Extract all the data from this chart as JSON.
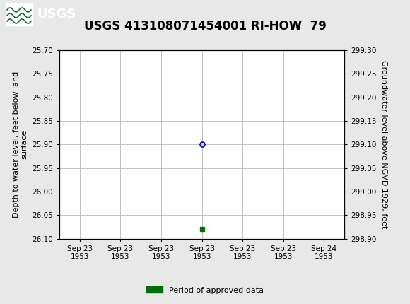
{
  "title": "USGS 413108071454001 RI-HOW  79",
  "ylabel_left": "Depth to water level, feet below land\nsurface",
  "ylabel_right": "Groundwater level above NGVD 1929, feet",
  "ylim_left_top": 25.7,
  "ylim_left_bottom": 26.1,
  "ylim_right_top": 299.3,
  "ylim_right_bottom": 298.9,
  "yticks_left": [
    25.7,
    25.75,
    25.8,
    25.85,
    25.9,
    25.95,
    26.0,
    26.05,
    26.1
  ],
  "ytick_labels_left": [
    "25.70",
    "25.75",
    "25.80",
    "25.85",
    "25.90",
    "25.95",
    "26.00",
    "26.05",
    "26.10"
  ],
  "yticks_right": [
    299.3,
    299.25,
    299.2,
    299.15,
    299.1,
    299.05,
    299.0,
    298.95,
    298.9
  ],
  "ytick_labels_right": [
    "299.30",
    "299.25",
    "299.20",
    "299.15",
    "299.10",
    "299.05",
    "299.00",
    "298.95",
    "298.90"
  ],
  "xtick_labels": [
    "Sep 23\n1953",
    "Sep 23\n1953",
    "Sep 23\n1953",
    "Sep 23\n1953",
    "Sep 23\n1953",
    "Sep 23\n1953",
    "Sep 24\n1953"
  ],
  "xtick_positions": [
    0,
    1,
    2,
    3,
    4,
    5,
    6
  ],
  "point_x": 3.0,
  "point_y_depth": 25.9,
  "point_color": "#0000bb",
  "green_square_x": 3.0,
  "green_square_y_depth": 26.08,
  "green_square_color": "#007000",
  "header_color": "#1b6b3a",
  "bg_color": "#e8e8e8",
  "plot_bg_color": "#ffffff",
  "grid_color": "#c0c0c0",
  "title_fontsize": 12,
  "axis_label_fontsize": 8,
  "tick_fontsize": 7.5,
  "legend_label": "Period of approved data"
}
